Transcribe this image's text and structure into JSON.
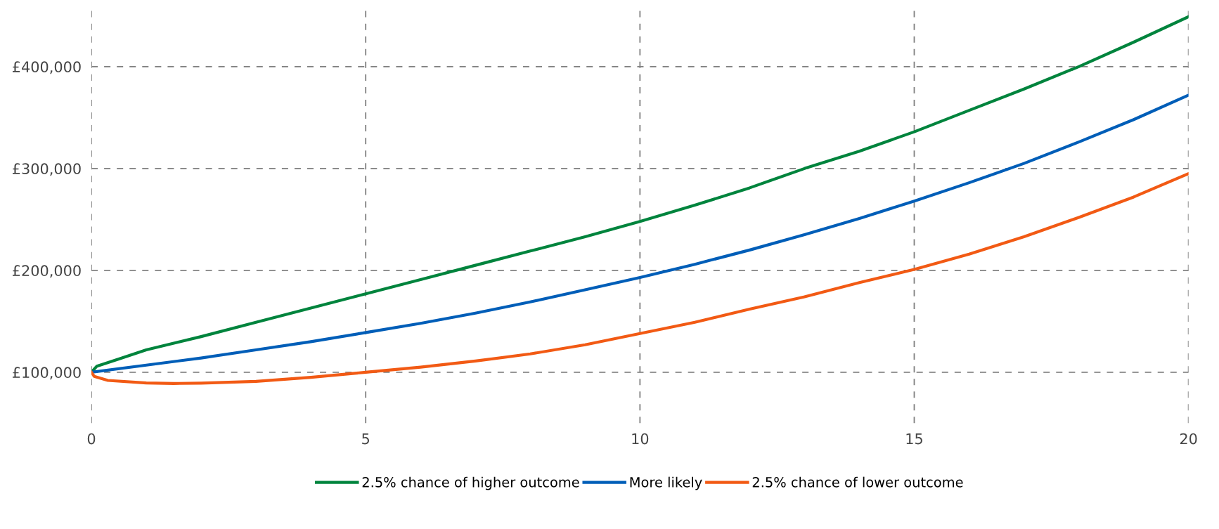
{
  "chart_data": {
    "type": "line",
    "xlim": [
      0,
      20
    ],
    "xticks": [
      0,
      5,
      10,
      15,
      20
    ],
    "ylim": [
      50000,
      455000
    ],
    "yticks": [
      {
        "value": 100000,
        "label": "£100,000"
      },
      {
        "value": 200000,
        "label": "£200,000"
      },
      {
        "value": 300000,
        "label": "£300,000"
      },
      {
        "value": 400000,
        "label": "£400,000"
      }
    ],
    "grid": true,
    "legend": "bottom",
    "line_style": "solid",
    "marker": "none",
    "series": [
      {
        "name": "2.5% chance of higher outcome",
        "color": "#00843d",
        "x": [
          0,
          0.1,
          0.5,
          1,
          2,
          3,
          4,
          5,
          6,
          7,
          8,
          9,
          10,
          11,
          12,
          13,
          14,
          15,
          16,
          17,
          18,
          19,
          20
        ],
        "values": [
          100000,
          106000,
          113000,
          122000,
          135000,
          149000,
          163000,
          177000,
          191000,
          205000,
          219000,
          233000,
          248000,
          264000,
          281000,
          300000,
          317000,
          336000,
          357000,
          378000,
          400000,
          424000,
          449000
        ]
      },
      {
        "name": "More likely",
        "color": "#005eb8",
        "x": [
          0,
          1,
          2,
          3,
          4,
          5,
          6,
          7,
          8,
          9,
          10,
          11,
          12,
          13,
          14,
          15,
          16,
          17,
          18,
          19,
          20
        ],
        "values": [
          100000,
          107000,
          114000,
          122000,
          130000,
          139000,
          148000,
          158000,
          169000,
          181000,
          193000,
          206000,
          220000,
          235000,
          251000,
          268000,
          286000,
          305000,
          326000,
          348000,
          372000
        ]
      },
      {
        "name": "2.5% chance of lower outcome",
        "color": "#f25a14",
        "x": [
          0,
          0.05,
          0.3,
          1,
          1.5,
          2,
          3,
          4,
          5,
          6,
          7,
          8,
          9,
          10,
          11,
          12,
          13,
          14,
          15,
          16,
          17,
          18,
          19,
          20
        ],
        "values": [
          100000,
          96000,
          92000,
          89500,
          89000,
          89300,
          91000,
          95000,
          100000,
          105000,
          111000,
          118000,
          127000,
          138000,
          149000,
          162000,
          174000,
          188000,
          201000,
          216000,
          233000,
          252000,
          272000,
          295000
        ]
      }
    ]
  }
}
